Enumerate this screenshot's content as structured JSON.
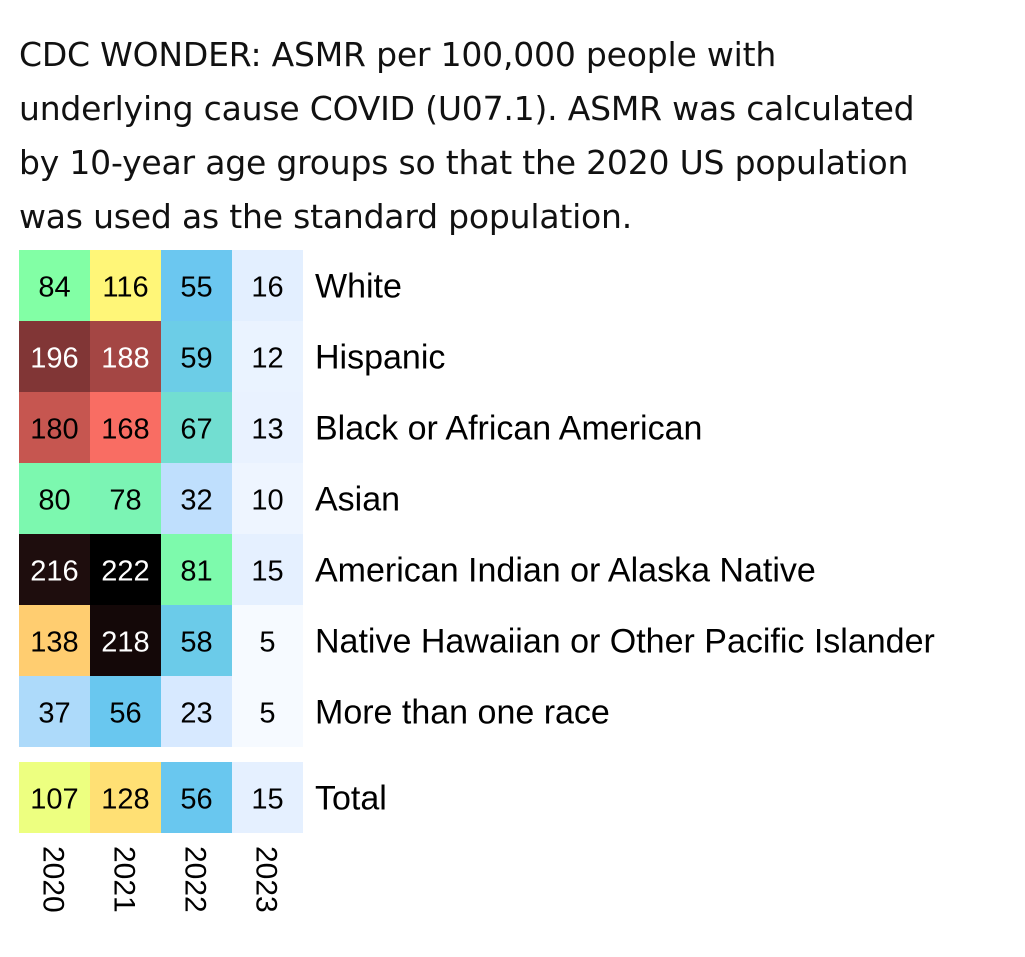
{
  "title_lines": [
    "CDC WONDER: ASMR per 100,000 people with",
    "underlying cause COVID (U07.1). ASMR was calculated",
    "by 10-year age groups so that the 2020 US population",
    "was used as the standard population."
  ],
  "chart_data": {
    "type": "heatmap",
    "title": "CDC WONDER: ASMR per 100,000 people with underlying cause COVID (U07.1). ASMR was calculated by 10-year age groups so that the 2020 US population was used as the standard population.",
    "columns": [
      "2020",
      "2021",
      "2022",
      "2023"
    ],
    "rows": [
      {
        "label": "White",
        "values": [
          84,
          116,
          55,
          16
        ]
      },
      {
        "label": "Hispanic",
        "values": [
          196,
          188,
          59,
          12
        ]
      },
      {
        "label": "Black or African American",
        "values": [
          180,
          168,
          67,
          13
        ]
      },
      {
        "label": "Asian",
        "values": [
          80,
          78,
          32,
          10
        ]
      },
      {
        "label": "American Indian or Alaska Native",
        "values": [
          216,
          222,
          81,
          15
        ]
      },
      {
        "label": "Native Hawaiian or Other Pacific Islander",
        "values": [
          138,
          218,
          58,
          5
        ]
      },
      {
        "label": "More than one race",
        "values": [
          37,
          56,
          23,
          5
        ]
      }
    ],
    "total": {
      "label": "Total",
      "values": [
        107,
        128,
        56,
        15
      ]
    },
    "color_scale": {
      "min": 0,
      "max": 222,
      "stops": [
        "#ffffff",
        "#cfe4ff",
        "#69c6f0",
        "#7fffa6",
        "#ffff7a",
        "#ffcc70",
        "#ff7065",
        "#8a3a3a",
        "#000000"
      ]
    }
  }
}
